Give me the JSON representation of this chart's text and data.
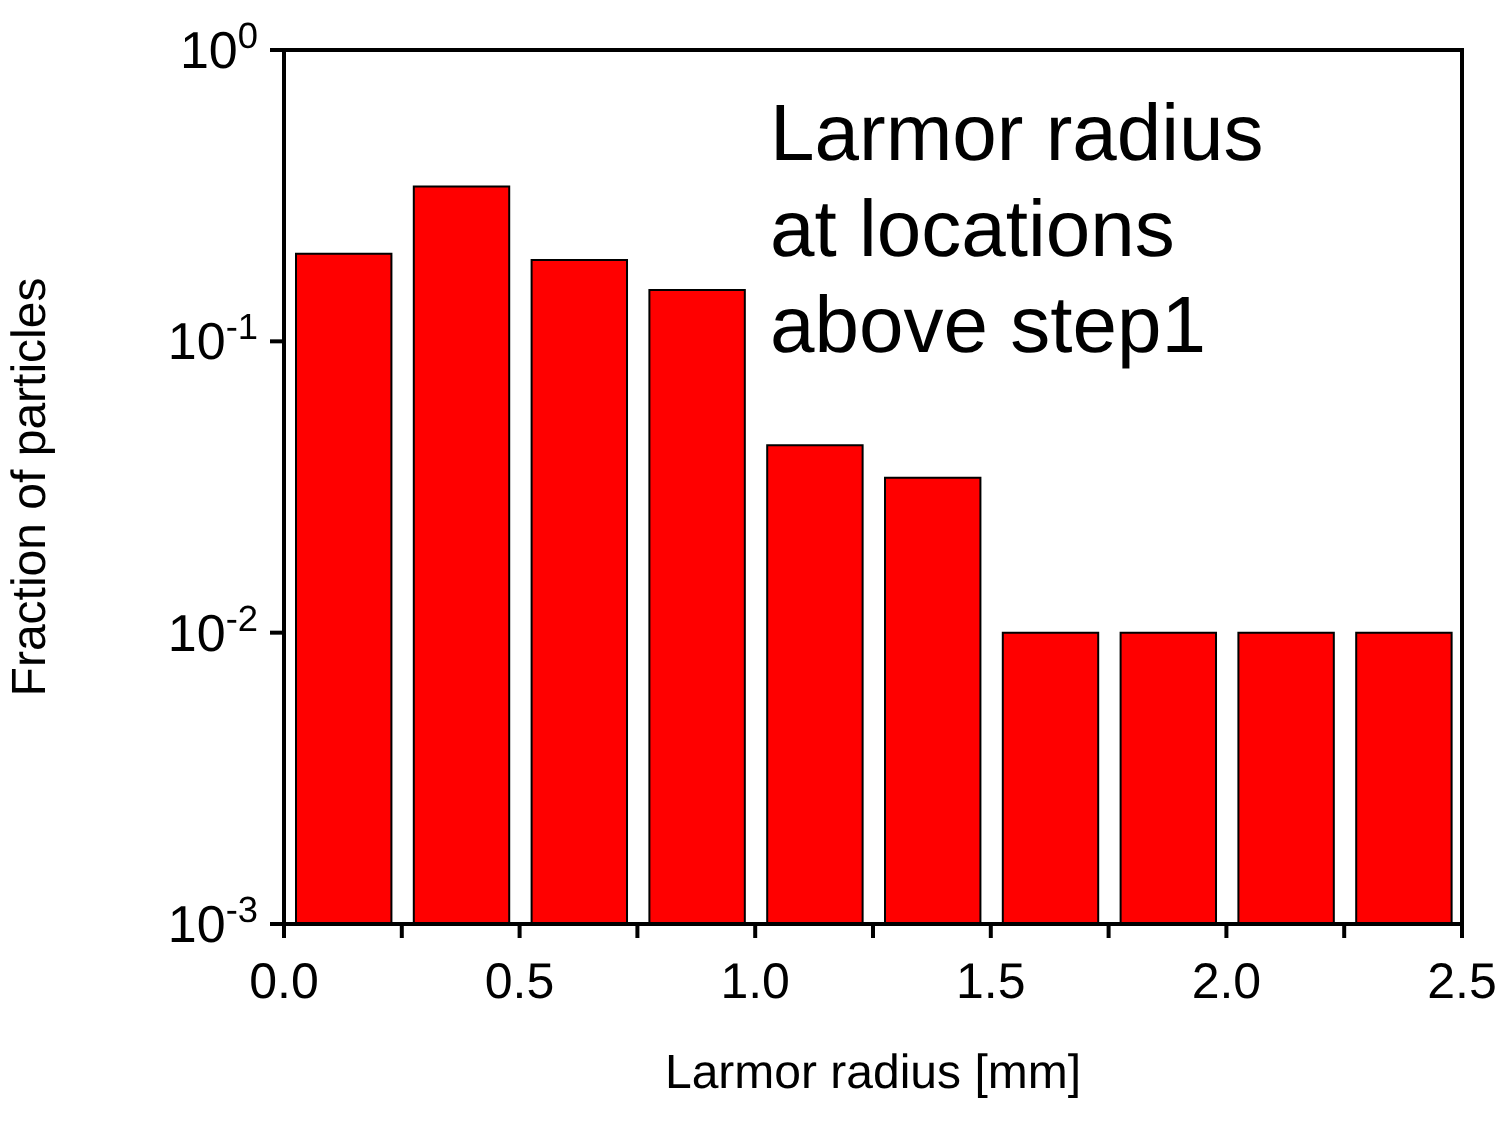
{
  "chart_data": {
    "type": "histogram",
    "xlabel": "Larmor radius [mm]",
    "ylabel": "Fraction of particles",
    "annotations": [
      "Larmor radius\nat locations\nabove step1"
    ],
    "bins": [
      0,
      0.25,
      0.5,
      0.75,
      1,
      1.25,
      1.5,
      1.75,
      2,
      2.25,
      2.5
    ],
    "values": [
      0.2,
      0.34,
      0.19,
      0.15,
      0.044,
      0.034,
      0.01,
      0.01,
      0.01,
      0.01
    ],
    "color": "#ff0000",
    "log": "y",
    "xlim": [
      0,
      2.5
    ],
    "xticks": [
      {
        "value": 0,
        "label": "0.0"
      },
      {
        "value": 0.25,
        "label": null
      },
      {
        "value": 0.5,
        "label": "0.5"
      },
      {
        "value": 0.75,
        "label": null
      },
      {
        "value": 1,
        "label": "1.0"
      },
      {
        "value": 1.25,
        "label": null
      },
      {
        "value": 1.5,
        "label": "1.5"
      },
      {
        "value": 1.75,
        "label": null
      },
      {
        "value": 2,
        "label": "2.0"
      },
      {
        "value": 2.25,
        "label": null
      },
      {
        "value": 2.5,
        "label": "2.5"
      }
    ],
    "ylim": [
      0.001,
      1
    ],
    "yticks": [
      {
        "value": 0.001,
        "label": "10$^{-3}$"
      },
      {
        "value": 0.01,
        "label": "10$^{-2}$"
      },
      {
        "value": 0.1,
        "label": "10$^{-1}$"
      },
      {
        "value": 1,
        "label": "10$^{0}$"
      }
    ]
  }
}
